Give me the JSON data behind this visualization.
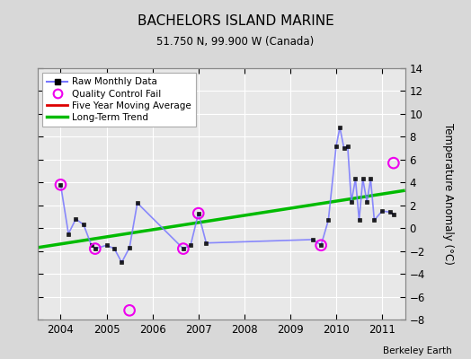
{
  "title": "BACHELORS ISLAND MARINE",
  "subtitle": "51.750 N, 99.900 W (Canada)",
  "credit": "Berkeley Earth",
  "ylabel": "Temperature Anomaly (°C)",
  "ylim": [
    -8,
    14
  ],
  "xlim": [
    2003.5,
    2011.5
  ],
  "yticks": [
    -8,
    -6,
    -4,
    -2,
    0,
    2,
    4,
    6,
    8,
    10,
    12,
    14
  ],
  "xticks": [
    2004,
    2005,
    2006,
    2007,
    2008,
    2009,
    2010,
    2011
  ],
  "bg_color": "#d8d8d8",
  "plot_bg_color": "#e8e8e8",
  "raw_data_x": [
    2004.0,
    2004.17,
    2004.33,
    2004.5,
    2004.67,
    2004.75,
    2005.0,
    2005.17,
    2005.33,
    2005.5,
    2005.67,
    2006.67,
    2006.83,
    2007.0,
    2007.17,
    2009.5,
    2009.67,
    2009.83,
    2010.0,
    2010.08,
    2010.17,
    2010.25,
    2010.33,
    2010.42,
    2010.5,
    2010.58,
    2010.67,
    2010.75,
    2010.83,
    2011.0,
    2011.17,
    2011.25
  ],
  "raw_data_y": [
    3.8,
    -0.5,
    0.8,
    0.3,
    -1.5,
    -1.8,
    -1.5,
    -1.8,
    -3.0,
    -1.7,
    2.2,
    -1.8,
    -1.5,
    1.3,
    -1.3,
    -1.0,
    -1.5,
    0.7,
    7.2,
    8.8,
    7.0,
    7.2,
    2.3,
    4.3,
    0.7,
    4.3,
    2.3,
    4.3,
    0.7,
    1.5,
    1.4,
    1.2
  ],
  "qc_fail_x": [
    2004.0,
    2004.75,
    2005.5,
    2006.67,
    2007.0,
    2009.67,
    2011.25
  ],
  "qc_fail_y": [
    3.8,
    -1.8,
    -7.2,
    -1.8,
    1.3,
    -1.5,
    5.7
  ],
  "trend_x": [
    2003.5,
    2011.5
  ],
  "trend_y": [
    -1.7,
    3.3
  ],
  "raw_color": "#7777ff",
  "raw_marker_color": "#000000",
  "qc_color": "#ee00ee",
  "trend_color": "#00bb00",
  "ma_color": "#dd0000",
  "grid_color": "#ffffff"
}
